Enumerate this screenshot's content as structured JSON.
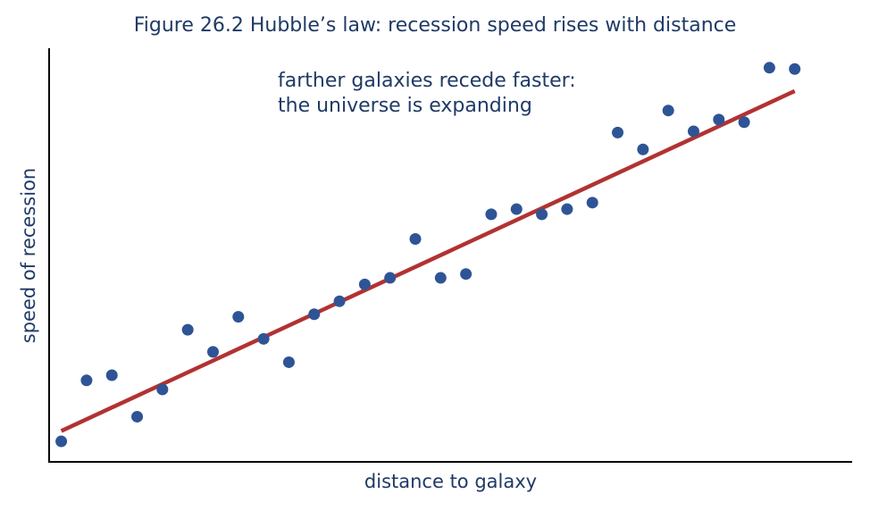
{
  "colors": {
    "points": "#2f5496",
    "trend": "#b23232",
    "text": "#1f3a66",
    "axis": "#000000"
  },
  "chart_data": {
    "type": "scatter",
    "title": "Figure 26.2  Hubble’s law: recession speed rises with distance",
    "xlabel": "distance to galaxy",
    "ylabel": "speed of recession",
    "xticks": false,
    "yticks": false,
    "grid": false,
    "xlim": [
      -0.48,
      31.27
    ],
    "ylim": [
      -0.79,
      15.15
    ],
    "points": {
      "x": [
        0,
        1,
        2,
        3,
        4,
        5,
        6,
        7,
        8,
        9,
        10,
        11,
        12,
        13,
        14,
        15,
        16,
        17,
        18,
        19,
        20,
        21,
        22,
        23,
        24,
        25,
        26,
        27,
        28,
        29
      ],
      "y": [
        0.0,
        2.35,
        2.55,
        0.95,
        2.0,
        4.3,
        3.45,
        4.8,
        3.95,
        3.05,
        4.9,
        5.4,
        6.05,
        6.3,
        7.8,
        6.3,
        6.45,
        8.75,
        8.95,
        8.75,
        8.95,
        9.2,
        11.9,
        11.25,
        12.75,
        11.95,
        12.4,
        12.3,
        14.4,
        14.35
      ]
    },
    "trendline": {
      "x": [
        0,
        29
      ],
      "y": [
        0.4,
        13.5
      ],
      "style": "solid"
    },
    "annotation": {
      "lines": [
        "farther galaxies recede faster:",
        "the universe is expanding"
      ]
    }
  }
}
